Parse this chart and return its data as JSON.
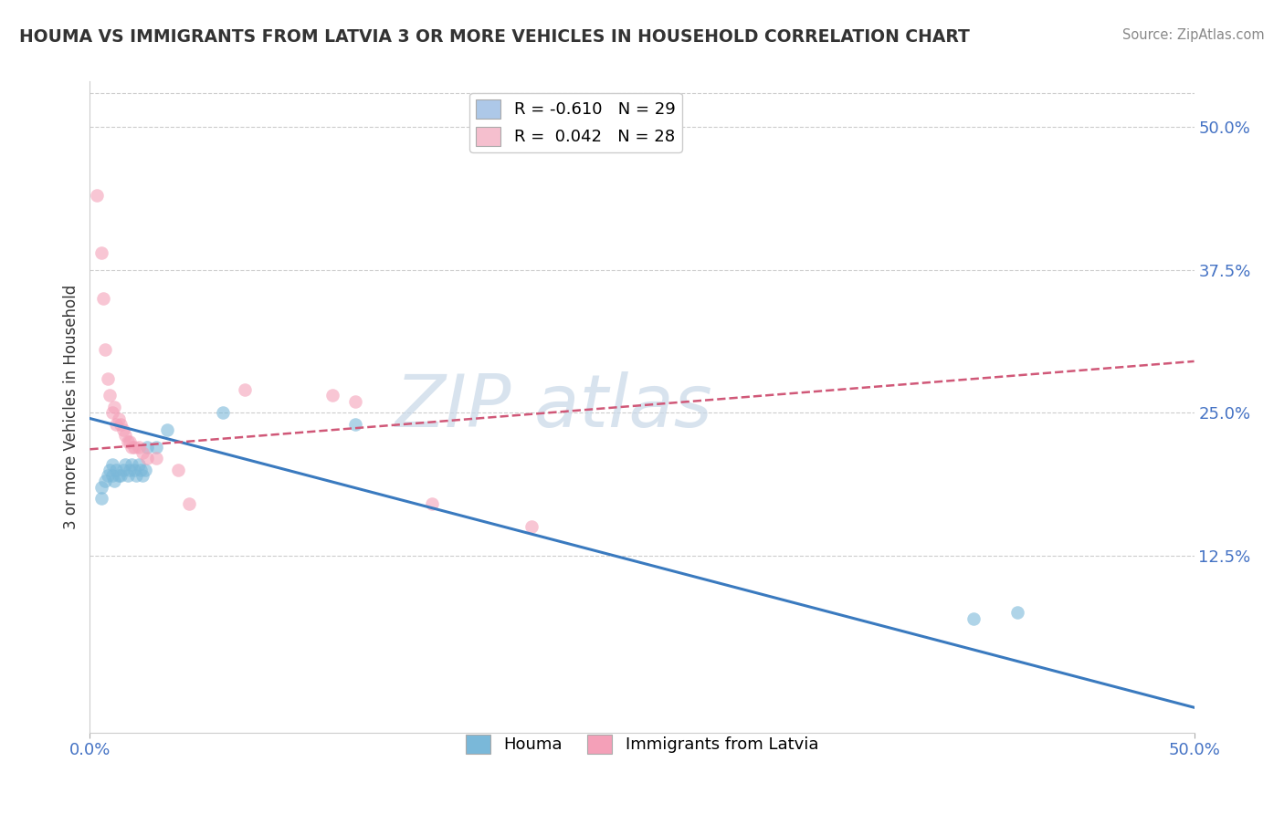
{
  "title": "HOUMA VS IMMIGRANTS FROM LATVIA 3 OR MORE VEHICLES IN HOUSEHOLD CORRELATION CHART",
  "source_text": "Source: ZipAtlas.com",
  "ylabel": "3 or more Vehicles in Household",
  "right_ytick_vals": [
    0.5,
    0.375,
    0.25,
    0.125
  ],
  "xmin": 0.0,
  "xmax": 0.5,
  "ymin": -0.03,
  "ymax": 0.54,
  "legend_r1": "R = -0.610   N = 29",
  "legend_r2": "R =  0.042   N = 28",
  "legend_color1": "#adc8e8",
  "legend_color2": "#f5bfce",
  "houma_x": [
    0.005,
    0.005,
    0.007,
    0.008,
    0.009,
    0.01,
    0.01,
    0.011,
    0.012,
    0.013,
    0.014,
    0.015,
    0.016,
    0.017,
    0.018,
    0.019,
    0.02,
    0.021,
    0.022,
    0.023,
    0.024,
    0.025,
    0.026,
    0.03,
    0.035,
    0.06,
    0.12,
    0.4,
    0.42
  ],
  "houma_y": [
    0.175,
    0.185,
    0.19,
    0.195,
    0.2,
    0.205,
    0.195,
    0.19,
    0.2,
    0.195,
    0.195,
    0.2,
    0.205,
    0.195,
    0.2,
    0.205,
    0.2,
    0.195,
    0.205,
    0.2,
    0.195,
    0.2,
    0.22,
    0.22,
    0.235,
    0.25,
    0.24,
    0.07,
    0.075
  ],
  "latvia_x": [
    0.003,
    0.005,
    0.006,
    0.007,
    0.008,
    0.009,
    0.01,
    0.011,
    0.012,
    0.013,
    0.014,
    0.015,
    0.016,
    0.017,
    0.018,
    0.019,
    0.02,
    0.022,
    0.024,
    0.026,
    0.03,
    0.04,
    0.07,
    0.11,
    0.12,
    0.155,
    0.2,
    0.045
  ],
  "latvia_y": [
    0.44,
    0.39,
    0.35,
    0.305,
    0.28,
    0.265,
    0.25,
    0.255,
    0.24,
    0.245,
    0.24,
    0.235,
    0.23,
    0.225,
    0.225,
    0.22,
    0.22,
    0.22,
    0.215,
    0.21,
    0.21,
    0.2,
    0.27,
    0.265,
    0.26,
    0.17,
    0.15,
    0.17
  ],
  "houma_color": "#7ab8d9",
  "latvia_color": "#f4a0b8",
  "houma_line_color": "#3a7abf",
  "latvia_line_color": "#d05878",
  "dot_size": 110,
  "dot_alpha": 0.6,
  "watermark": "ZIP atlas",
  "watermark_color": "#c8d8e8",
  "grid_color": "#cccccc",
  "grid_linestyle": "--"
}
